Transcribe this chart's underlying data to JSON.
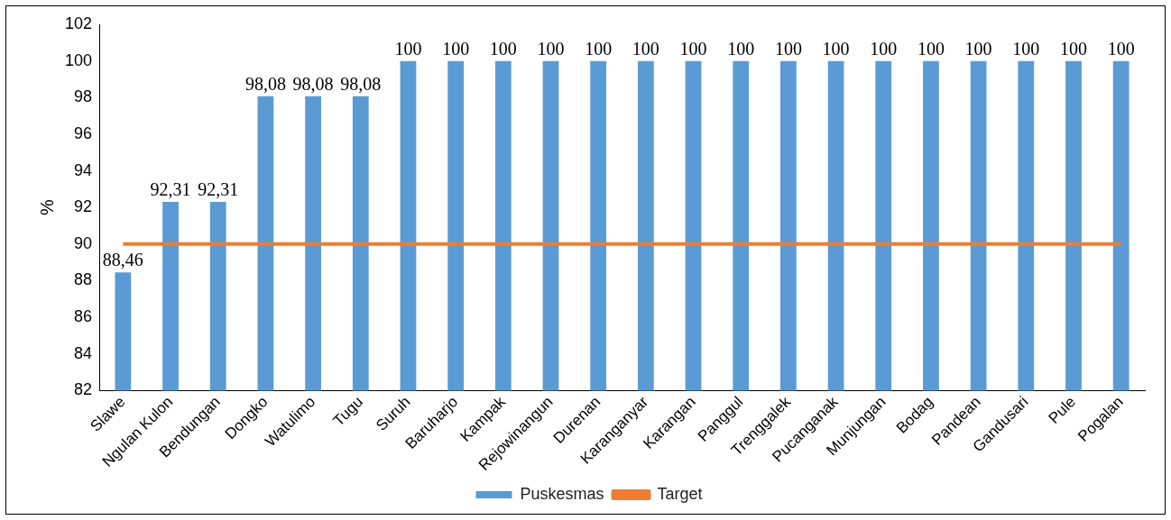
{
  "chart_data": {
    "type": "bar",
    "ylabel": "%",
    "categories": [
      "Slawe",
      "Ngulan Kulon",
      "Bendungan",
      "Dongko",
      "Watulimo",
      "Tugu",
      "Suruh",
      "Baruharjo",
      "Kampak",
      "Rejowinangun",
      "Durenan",
      "Karanganyar",
      "Karangan",
      "Panggul",
      "Trenggalek",
      "Pucanganak",
      "Munjungan",
      "Bodag",
      "Pandean",
      "Gandusari",
      "Pule",
      "Pogalan"
    ],
    "series": [
      {
        "name": "Puskesmas",
        "color": "#5b9bd5",
        "values": [
          88.46,
          92.31,
          92.31,
          98.08,
          98.08,
          98.08,
          100,
          100,
          100,
          100,
          100,
          100,
          100,
          100,
          100,
          100,
          100,
          100,
          100,
          100,
          100,
          100
        ],
        "value_labels": [
          "88,46",
          "92,31",
          "92,31",
          "98,08",
          "98,08",
          "98,08",
          "100",
          "100",
          "100",
          "100",
          "100",
          "100",
          "100",
          "100",
          "100",
          "100",
          "100",
          "100",
          "100",
          "100",
          "100",
          "100"
        ]
      },
      {
        "name": "Target",
        "type": "line",
        "color": "#ed7d31",
        "values": [
          90,
          90,
          90,
          90,
          90,
          90,
          90,
          90,
          90,
          90,
          90,
          90,
          90,
          90,
          90,
          90,
          90,
          90,
          90,
          90,
          90,
          90
        ]
      }
    ],
    "ylim": [
      82,
      102
    ],
    "yticks": [
      82,
      84,
      86,
      88,
      90,
      92,
      94,
      96,
      98,
      100,
      102
    ],
    "legend": "bottom",
    "marker": "none"
  }
}
